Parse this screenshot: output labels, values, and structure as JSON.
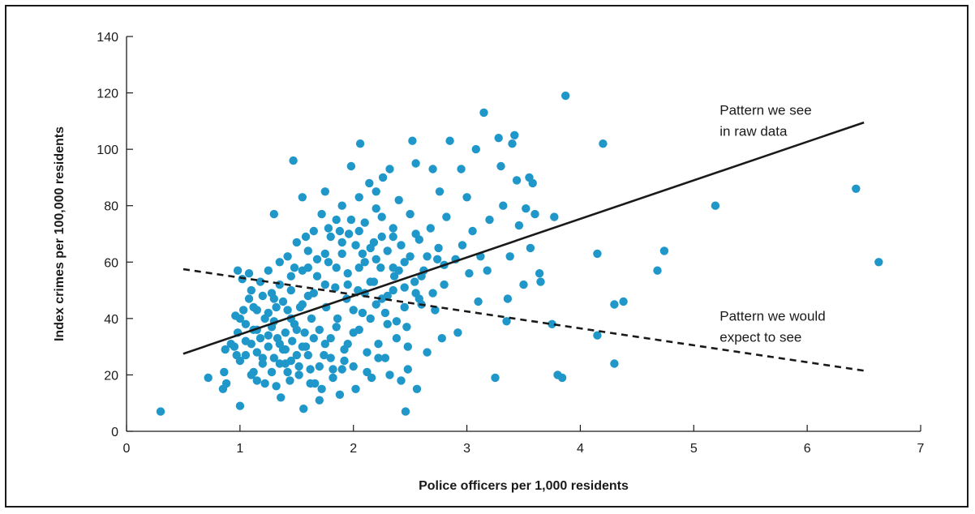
{
  "chart_data": {
    "type": "scatter",
    "title": "",
    "xlabel": "Police officers per 1,000 residents",
    "ylabel": "Index crimes per 100,000 residents",
    "xlim": [
      0,
      7
    ],
    "ylim": [
      0,
      140
    ],
    "xticks": [
      0,
      1,
      2,
      3,
      4,
      5,
      6,
      7
    ],
    "yticks": [
      0,
      20,
      40,
      60,
      80,
      100,
      120,
      140
    ],
    "grid": false,
    "point_color": "#1f97c9",
    "line_color": "#1a1a1a",
    "points": [
      [
        0.3,
        7
      ],
      [
        1.0,
        9
      ],
      [
        0.72,
        19
      ],
      [
        0.85,
        15
      ],
      [
        0.88,
        17
      ],
      [
        0.86,
        21
      ],
      [
        0.87,
        29
      ],
      [
        0.95,
        30
      ],
      [
        0.96,
        41
      ],
      [
        0.98,
        57
      ],
      [
        1.0,
        40
      ],
      [
        1.02,
        54
      ],
      [
        0.98,
        35
      ],
      [
        1.0,
        25
      ],
      [
        1.05,
        32
      ],
      [
        1.05,
        38
      ],
      [
        1.08,
        56
      ],
      [
        1.1,
        50
      ],
      [
        1.1,
        20
      ],
      [
        1.12,
        44
      ],
      [
        1.12,
        36
      ],
      [
        1.15,
        28
      ],
      [
        1.15,
        18
      ],
      [
        1.18,
        33
      ],
      [
        1.2,
        48
      ],
      [
        1.2,
        24
      ],
      [
        1.22,
        40
      ],
      [
        1.25,
        30
      ],
      [
        1.25,
        57
      ],
      [
        1.28,
        37
      ],
      [
        1.28,
        21
      ],
      [
        1.3,
        26
      ],
      [
        1.3,
        77
      ],
      [
        1.32,
        44
      ],
      [
        1.33,
        33
      ],
      [
        1.35,
        52
      ],
      [
        1.35,
        60
      ],
      [
        1.36,
        12
      ],
      [
        1.38,
        29
      ],
      [
        1.4,
        35
      ],
      [
        1.4,
        24
      ],
      [
        1.42,
        43
      ],
      [
        1.42,
        62
      ],
      [
        1.44,
        18
      ],
      [
        1.45,
        50
      ],
      [
        1.46,
        32
      ],
      [
        1.47,
        96
      ],
      [
        1.48,
        38
      ],
      [
        1.5,
        27
      ],
      [
        1.5,
        67
      ],
      [
        1.52,
        20
      ],
      [
        1.53,
        44
      ],
      [
        1.55,
        57
      ],
      [
        1.55,
        83
      ],
      [
        1.56,
        8
      ],
      [
        1.57,
        35
      ],
      [
        1.58,
        30
      ],
      [
        1.6,
        48
      ],
      [
        1.6,
        64
      ],
      [
        1.62,
        22
      ],
      [
        1.63,
        40
      ],
      [
        1.65,
        71
      ],
      [
        1.66,
        17
      ],
      [
        1.68,
        55
      ],
      [
        1.7,
        11
      ],
      [
        1.7,
        36
      ],
      [
        1.72,
        77
      ],
      [
        1.74,
        27
      ],
      [
        1.75,
        85
      ],
      [
        1.76,
        44
      ],
      [
        1.78,
        60
      ],
      [
        1.8,
        33
      ],
      [
        1.8,
        69
      ],
      [
        1.82,
        19
      ],
      [
        1.84,
        51
      ],
      [
        1.85,
        75
      ],
      [
        1.86,
        40
      ],
      [
        1.88,
        13
      ],
      [
        1.9,
        63
      ],
      [
        1.9,
        80
      ],
      [
        1.92,
        29
      ],
      [
        1.94,
        47
      ],
      [
        1.95,
        56
      ],
      [
        1.96,
        70
      ],
      [
        1.98,
        94
      ],
      [
        2.0,
        35
      ],
      [
        2.0,
        23
      ],
      [
        2.02,
        66
      ],
      [
        2.04,
        50
      ],
      [
        2.05,
        83
      ],
      [
        2.06,
        102
      ],
      [
        2.08,
        42
      ],
      [
        2.1,
        60
      ],
      [
        2.1,
        74
      ],
      [
        2.12,
        28
      ],
      [
        2.14,
        88
      ],
      [
        2.15,
        53
      ],
      [
        2.16,
        19
      ],
      [
        2.18,
        67
      ],
      [
        2.2,
        45
      ],
      [
        2.2,
        85
      ],
      [
        2.22,
        31
      ],
      [
        2.24,
        58
      ],
      [
        2.25,
        76
      ],
      [
        2.26,
        90
      ],
      [
        2.28,
        26
      ],
      [
        2.3,
        48
      ],
      [
        2.3,
        64
      ],
      [
        2.32,
        93
      ],
      [
        2.35,
        72
      ],
      [
        2.36,
        55
      ],
      [
        2.38,
        39
      ],
      [
        2.4,
        82
      ],
      [
        2.42,
        66
      ],
      [
        2.42,
        18
      ],
      [
        2.45,
        60
      ],
      [
        2.46,
        7
      ],
      [
        2.47,
        37
      ],
      [
        2.48,
        22
      ],
      [
        2.5,
        77
      ],
      [
        2.52,
        103
      ],
      [
        2.54,
        53
      ],
      [
        2.55,
        95
      ],
      [
        2.56,
        15
      ],
      [
        2.58,
        68
      ],
      [
        2.6,
        45
      ],
      [
        2.62,
        57
      ],
      [
        2.65,
        28
      ],
      [
        2.68,
        72
      ],
      [
        2.7,
        93
      ],
      [
        2.72,
        43
      ],
      [
        2.74,
        61
      ],
      [
        2.76,
        85
      ],
      [
        2.78,
        33
      ],
      [
        2.8,
        52
      ],
      [
        2.82,
        76
      ],
      [
        2.85,
        103
      ],
      [
        2.9,
        61
      ],
      [
        2.92,
        35
      ],
      [
        2.95,
        93
      ],
      [
        2.96,
        66
      ],
      [
        3.0,
        83
      ],
      [
        3.02,
        56
      ],
      [
        3.05,
        71
      ],
      [
        3.08,
        100
      ],
      [
        3.1,
        46
      ],
      [
        3.12,
        62
      ],
      [
        3.15,
        113
      ],
      [
        3.18,
        57
      ],
      [
        3.2,
        75
      ],
      [
        3.25,
        19
      ],
      [
        3.28,
        104
      ],
      [
        3.3,
        94
      ],
      [
        3.32,
        80
      ],
      [
        3.35,
        39
      ],
      [
        3.36,
        47
      ],
      [
        3.38,
        62
      ],
      [
        3.4,
        102
      ],
      [
        3.42,
        105
      ],
      [
        3.44,
        89
      ],
      [
        3.46,
        73
      ],
      [
        3.5,
        52
      ],
      [
        3.52,
        79
      ],
      [
        3.55,
        90
      ],
      [
        3.56,
        65
      ],
      [
        3.58,
        88
      ],
      [
        3.6,
        77
      ],
      [
        3.64,
        56
      ],
      [
        3.65,
        53
      ],
      [
        3.75,
        38
      ],
      [
        3.77,
        76
      ],
      [
        3.8,
        20
      ],
      [
        3.84,
        19
      ],
      [
        3.87,
        119
      ],
      [
        4.15,
        63
      ],
      [
        4.15,
        34
      ],
      [
        4.2,
        102
      ],
      [
        4.3,
        24
      ],
      [
        4.3,
        45
      ],
      [
        4.38,
        46
      ],
      [
        4.68,
        57
      ],
      [
        4.74,
        64
      ],
      [
        5.19,
        80
      ],
      [
        6.43,
        86
      ],
      [
        6.63,
        60
      ],
      [
        1.1,
        31
      ],
      [
        1.2,
        26
      ],
      [
        1.25,
        34
      ],
      [
        1.3,
        39
      ],
      [
        1.35,
        31
      ],
      [
        1.4,
        29
      ],
      [
        1.45,
        25
      ],
      [
        1.5,
        36
      ],
      [
        1.55,
        30
      ],
      [
        1.6,
        27
      ],
      [
        1.65,
        33
      ],
      [
        1.7,
        23
      ],
      [
        1.75,
        31
      ],
      [
        1.8,
        26
      ],
      [
        1.85,
        37
      ],
      [
        1.9,
        22
      ],
      [
        1.95,
        31
      ],
      [
        2.0,
        43
      ],
      [
        2.05,
        36
      ],
      [
        2.1,
        49
      ],
      [
        2.15,
        40
      ],
      [
        2.2,
        61
      ],
      [
        2.25,
        47
      ],
      [
        2.3,
        38
      ],
      [
        2.35,
        50
      ],
      [
        2.4,
        57
      ],
      [
        2.45,
        44
      ],
      [
        2.5,
        62
      ],
      [
        2.55,
        70
      ],
      [
        2.6,
        55
      ],
      [
        2.7,
        49
      ],
      [
        2.75,
        65
      ],
      [
        2.8,
        59
      ],
      [
        1.15,
        43
      ],
      [
        1.3,
        47
      ],
      [
        1.45,
        55
      ],
      [
        1.6,
        58
      ],
      [
        1.75,
        63
      ],
      [
        1.9,
        67
      ],
      [
        2.05,
        71
      ],
      [
        2.2,
        79
      ],
      [
        2.35,
        69
      ],
      [
        1.05,
        27
      ],
      [
        1.15,
        36
      ],
      [
        1.25,
        42
      ],
      [
        1.35,
        24
      ],
      [
        1.45,
        40
      ],
      [
        1.55,
        45
      ],
      [
        1.65,
        49
      ],
      [
        1.75,
        52
      ],
      [
        1.85,
        58
      ],
      [
        1.95,
        52
      ],
      [
        2.05,
        58
      ],
      [
        2.15,
        65
      ],
      [
        2.25,
        69
      ],
      [
        2.35,
        58
      ],
      [
        2.45,
        51
      ],
      [
        2.55,
        49
      ],
      [
        2.65,
        62
      ],
      [
        1.12,
        21
      ],
      [
        1.22,
        17
      ],
      [
        1.32,
        16
      ],
      [
        1.42,
        21
      ],
      [
        1.52,
        23
      ],
      [
        1.62,
        17
      ],
      [
        1.72,
        15
      ],
      [
        1.82,
        22
      ],
      [
        1.92,
        25
      ],
      [
        2.02,
        15
      ],
      [
        2.12,
        21
      ],
      [
        2.22,
        26
      ],
      [
        2.32,
        20
      ],
      [
        0.92,
        31
      ],
      [
        0.97,
        27
      ],
      [
        1.03,
        43
      ],
      [
        1.08,
        47
      ],
      [
        1.18,
        53
      ],
      [
        1.28,
        49
      ],
      [
        1.38,
        46
      ],
      [
        1.48,
        58
      ],
      [
        1.58,
        69
      ],
      [
        1.68,
        61
      ],
      [
        1.78,
        72
      ],
      [
        1.88,
        71
      ],
      [
        1.98,
        75
      ],
      [
        2.08,
        63
      ],
      [
        2.18,
        53
      ],
      [
        2.28,
        42
      ],
      [
        2.38,
        33
      ],
      [
        2.48,
        30
      ],
      [
        2.58,
        47
      ]
    ],
    "lines": [
      {
        "name": "Pattern we see in raw data",
        "style": "solid",
        "x": [
          0.5,
          6.5
        ],
        "y": [
          27.5,
          109.5
        ]
      },
      {
        "name": "Pattern we would expect to see",
        "style": "dashed",
        "x": [
          0.5,
          6.5
        ],
        "y": [
          57.5,
          21.5
        ]
      }
    ],
    "annotations": [
      {
        "lines": [
          "Pattern we see",
          "in raw data"
        ],
        "x": 5.2,
        "y": 114
      },
      {
        "lines": [
          "Pattern we would",
          "expect to see"
        ],
        "x": 5.2,
        "y": 41
      }
    ]
  }
}
